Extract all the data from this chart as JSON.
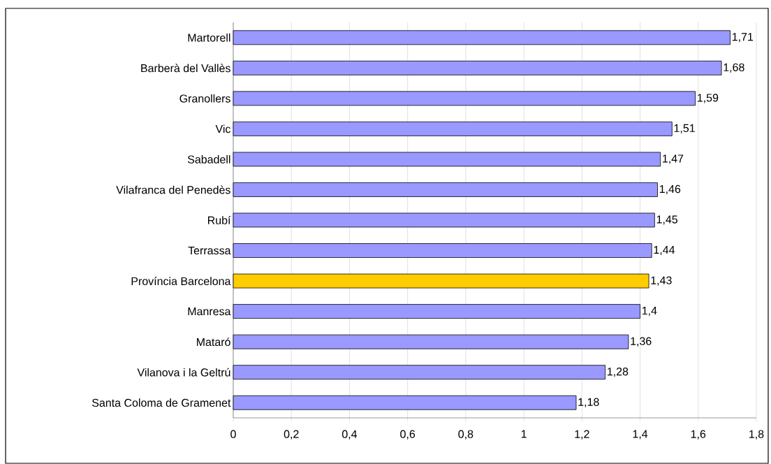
{
  "chart_data": {
    "type": "bar",
    "orientation": "horizontal",
    "categories": [
      "Martorell",
      "Barberà del Vallès",
      "Granollers",
      "Vic",
      "Sabadell",
      "Vilafranca del Penedès",
      "Rubí",
      "Terrassa",
      "Província Barcelona",
      "Manresa",
      "Mataró",
      "Vilanova i la Geltrú",
      "Santa Coloma de Gramenet"
    ],
    "values": [
      1.71,
      1.68,
      1.59,
      1.51,
      1.47,
      1.46,
      1.45,
      1.44,
      1.43,
      1.4,
      1.36,
      1.28,
      1.18
    ],
    "value_labels": [
      "1,71",
      "1,68",
      "1,59",
      "1,51",
      "1,47",
      "1,46",
      "1,45",
      "1,44",
      "1,43",
      "1,4",
      "1,36",
      "1,28",
      "1,18"
    ],
    "colors": [
      "#9999ff",
      "#9999ff",
      "#9999ff",
      "#9999ff",
      "#9999ff",
      "#9999ff",
      "#9999ff",
      "#9999ff",
      "#ffcc00",
      "#9999ff",
      "#9999ff",
      "#9999ff",
      "#9999ff"
    ],
    "xlim": [
      0,
      1.8
    ],
    "xticks": [
      0,
      {
        "value": 0.2,
        "label": "0,2"
      },
      {
        "value": 0.4,
        "label": "0,4"
      },
      {
        "value": 0.6,
        "label": "0,6"
      },
      {
        "value": 0.8,
        "label": "0,8"
      },
      1,
      {
        "value": 1.2,
        "label": "1,2"
      },
      {
        "value": 1.4,
        "label": "1,4"
      },
      {
        "value": 1.6,
        "label": "1,6"
      },
      {
        "value": 1.8,
        "label": "1,8"
      }
    ],
    "grid": "x"
  }
}
